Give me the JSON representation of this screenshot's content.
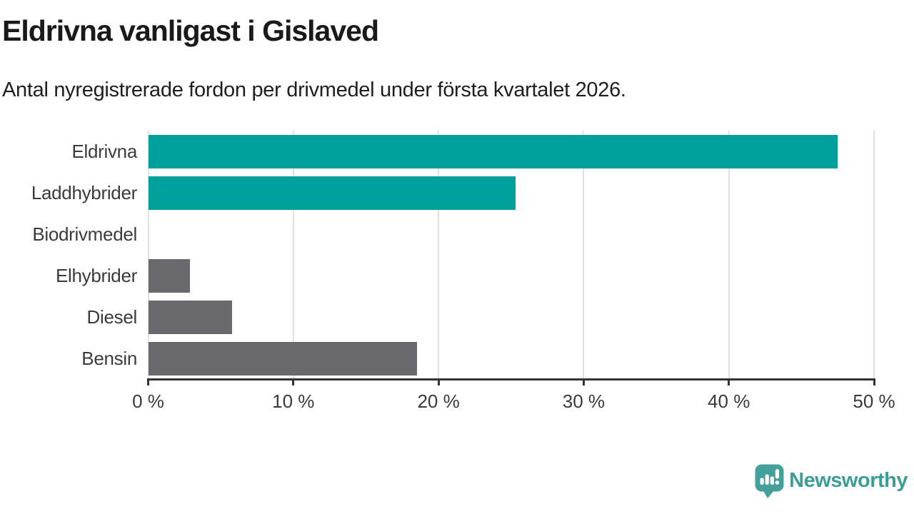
{
  "header": {
    "title": "Eldrivna vanligast i Gislaved",
    "subtitle": "Antal nyregistrerade fordon per drivmedel under första kvartalet 2026."
  },
  "colors": {
    "teal": "#00a09a",
    "gray": "#6a6a6e",
    "grid": "#e0e0e0",
    "axis": "#333333",
    "text": "#3b3b3b",
    "logo": "#43a09a"
  },
  "chart_data": {
    "type": "bar",
    "orientation": "horizontal",
    "title": "Eldrivna vanligast i Gislaved",
    "subtitle": "Antal nyregistrerade fordon per drivmedel under första kvartalet 2026.",
    "categories": [
      "Eldrivna",
      "Laddhybrider",
      "Biodrivmedel",
      "Elhybrider",
      "Diesel",
      "Bensin"
    ],
    "values": [
      47.5,
      25.3,
      0,
      2.9,
      5.8,
      18.5
    ],
    "unit": "%",
    "bar_colors": [
      "teal",
      "teal",
      "gray",
      "gray",
      "gray",
      "gray"
    ],
    "xlim": [
      0,
      50
    ],
    "x_tick_values": [
      0,
      10,
      20,
      30,
      40,
      50
    ],
    "x_tick_labels": [
      "0 %",
      "10 %",
      "20 %",
      "30 %",
      "40 %",
      "50 %"
    ],
    "grid": true,
    "legend": false
  },
  "footer": {
    "brand": "Newsworthy",
    "logo_icon": "newsworthy-speech-bubble-bar-chart-icon"
  }
}
